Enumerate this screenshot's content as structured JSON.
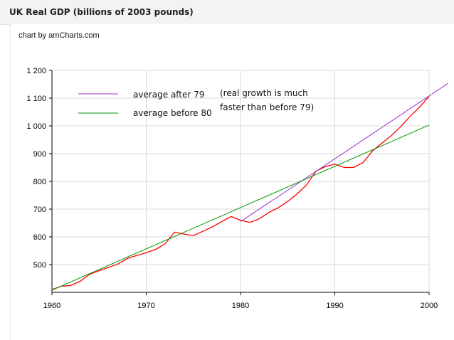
{
  "page": {
    "title": "UK Real GDP (billions of 2003 pounds)",
    "credit": "chart by amCharts.com"
  },
  "chart_data": {
    "type": "line",
    "title": "UK Real GDP (billions of 2003 pounds)",
    "xlabel": "",
    "ylabel": "",
    "xlim": [
      1960,
      2000
    ],
    "ylim": [
      400,
      1200
    ],
    "x_ticks": [
      1960,
      1970,
      1980,
      1990,
      2000
    ],
    "y_ticks": [
      500,
      600,
      700,
      800,
      900,
      1000,
      1100,
      1200
    ],
    "y_tick_labels": [
      "500",
      "600",
      "700",
      "800",
      "900",
      "1 000",
      "1 100",
      "1 200"
    ],
    "grid": true,
    "legend_position": "top-left",
    "series": [
      {
        "color": "#ff0000",
        "x": [
          1960,
          1961,
          1962,
          1963,
          1964,
          1965,
          1966,
          1967,
          1968,
          1969,
          1970,
          1971,
          1972,
          1973,
          1974,
          1975,
          1976,
          1977,
          1978,
          1979,
          1980,
          1981,
          1982,
          1983,
          1984,
          1985,
          1986,
          1987,
          1988,
          1989,
          1990,
          1991,
          1992,
          1993,
          1994,
          1995,
          1996,
          1997,
          1998,
          1999,
          2000
        ],
        "values": [
          410,
          422,
          425,
          440,
          465,
          478,
          490,
          502,
          522,
          533,
          543,
          555,
          575,
          617,
          610,
          605,
          620,
          636,
          655,
          673,
          660,
          652,
          665,
          688,
          705,
          728,
          755,
          787,
          837,
          853,
          862,
          850,
          850,
          868,
          910,
          938,
          965,
          998,
          1035,
          1068,
          1107
        ]
      },
      {
        "name": "average after 79",
        "color": "#9933cc",
        "x": [
          1980,
          2002
        ],
        "values": [
          655,
          1153
        ]
      },
      {
        "name": "average before 80",
        "color": "#009900",
        "x": [
          1960,
          2000
        ],
        "values": [
          408,
          1003
        ]
      }
    ],
    "annotation": {
      "lines": [
        "(real growth is much",
        "faster than before 79)"
      ]
    }
  }
}
